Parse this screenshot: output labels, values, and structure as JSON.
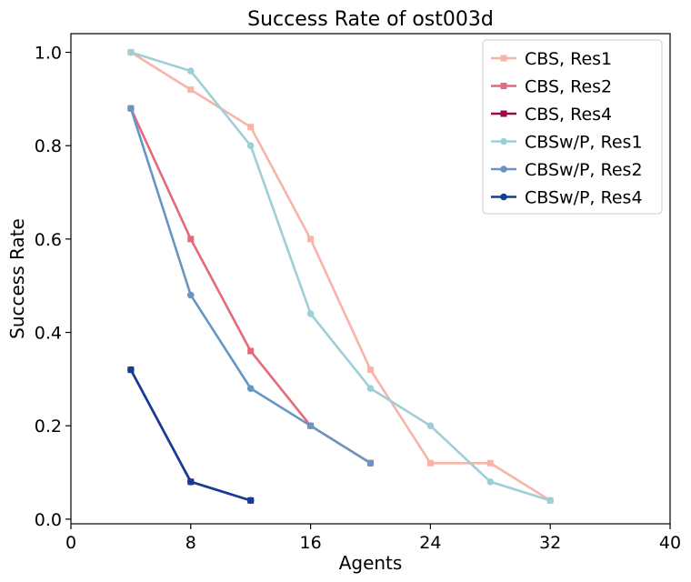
{
  "chart_data": {
    "type": "line",
    "title": "Success Rate of ost003d",
    "xlabel": "Agents",
    "ylabel": "Success Rate",
    "xlim": [
      0,
      40
    ],
    "ylim": [
      -0.01,
      1.04
    ],
    "xticks": [
      0,
      8,
      16,
      24,
      32,
      40
    ],
    "xtick_labels": [
      "0",
      "8",
      "16",
      "24",
      "32",
      "40"
    ],
    "yticks": [
      0.0,
      0.2,
      0.4,
      0.6,
      0.8,
      1.0
    ],
    "ytick_labels": [
      "0.0",
      "0.2",
      "0.4",
      "0.6",
      "0.8",
      "1.0"
    ],
    "grid": false,
    "legend_position": "top-right",
    "series": [
      {
        "name": "CBS, Res1",
        "color": "#f8b4a8",
        "marker": "square",
        "x": [
          4,
          8,
          12,
          16,
          20,
          24,
          28,
          32
        ],
        "y": [
          1.0,
          0.92,
          0.84,
          0.6,
          0.32,
          0.12,
          0.12,
          0.04
        ]
      },
      {
        "name": "CBS, Res2",
        "color": "#e46a7a",
        "marker": "square",
        "x": [
          4,
          8,
          12,
          16,
          20
        ],
        "y": [
          0.88,
          0.6,
          0.36,
          0.2,
          0.12
        ]
      },
      {
        "name": "CBS, Res4",
        "color": "#9b0a47",
        "marker": "square",
        "x": [
          4,
          8,
          12
        ],
        "y": [
          0.32,
          0.08,
          0.04
        ]
      },
      {
        "name": "CBSw/P, Res1",
        "color": "#9ecfd6",
        "marker": "circle",
        "x": [
          4,
          8,
          12,
          16,
          20,
          24,
          28,
          32
        ],
        "y": [
          1.0,
          0.96,
          0.8,
          0.44,
          0.28,
          0.2,
          0.08,
          0.04
        ]
      },
      {
        "name": "CBSw/P, Res2",
        "color": "#6896c2",
        "marker": "circle",
        "x": [
          4,
          8,
          12,
          16,
          20
        ],
        "y": [
          0.88,
          0.48,
          0.28,
          0.2,
          0.12
        ]
      },
      {
        "name": "CBSw/P, Res4",
        "color": "#0f3f97",
        "marker": "circle",
        "x": [
          4,
          8,
          12
        ],
        "y": [
          0.32,
          0.08,
          0.04
        ]
      }
    ]
  }
}
